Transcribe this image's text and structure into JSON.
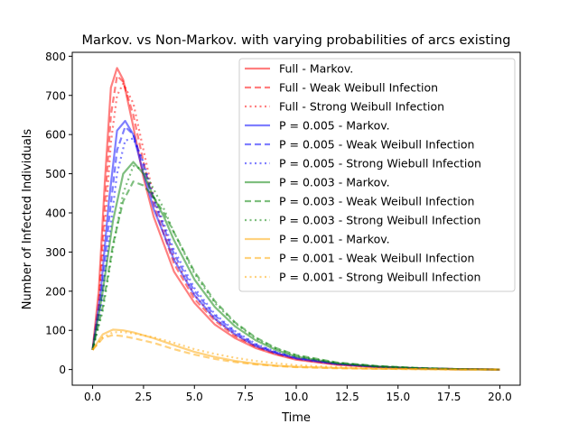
{
  "chart_data": {
    "type": "line",
    "title": "Markov. vs Non-Markov. with varying probabilities of arcs existing",
    "xlabel": "Time",
    "ylabel": "Number of Infected Individuals",
    "xlim": [
      -1.0,
      21.0
    ],
    "ylim": [
      -40,
      810
    ],
    "xticks": [
      0.0,
      2.5,
      5.0,
      7.5,
      10.0,
      12.5,
      15.0,
      17.5,
      20.0
    ],
    "xtick_labels": [
      "0.0",
      "2.5",
      "5.0",
      "7.5",
      "10.0",
      "12.5",
      "15.0",
      "17.5",
      "20.0"
    ],
    "yticks": [
      0,
      100,
      200,
      300,
      400,
      500,
      600,
      700,
      800
    ],
    "ytick_labels": [
      "0",
      "100",
      "200",
      "300",
      "400",
      "500",
      "600",
      "700",
      "800"
    ],
    "grid": false,
    "legend_position": "top-right",
    "series": [
      {
        "name": "Full - Markov.",
        "color": "#ff0000",
        "style": "solid",
        "x": [
          0,
          0.3,
          0.6,
          0.9,
          1.2,
          1.5,
          2,
          2.5,
          3,
          4,
          5,
          6,
          7,
          8,
          9,
          10,
          12,
          14,
          16,
          18,
          20
        ],
        "y": [
          50,
          200,
          480,
          720,
          770,
          740,
          620,
          490,
          390,
          250,
          170,
          115,
          80,
          55,
          38,
          25,
          12,
          6,
          3,
          1,
          0
        ]
      },
      {
        "name": "Full - Weak Weibull Infection",
        "color": "#ff0000",
        "style": "dashed",
        "x": [
          0,
          0.3,
          0.6,
          0.9,
          1.2,
          1.5,
          2,
          2.5,
          3,
          4,
          5,
          6,
          7,
          8,
          9,
          10,
          12,
          14,
          16,
          18,
          20
        ],
        "y": [
          50,
          170,
          420,
          650,
          750,
          735,
          650,
          530,
          420,
          270,
          180,
          125,
          85,
          58,
          40,
          27,
          13,
          6,
          3,
          1,
          0
        ]
      },
      {
        "name": "Full - Strong Weibull Infection",
        "color": "#ff0000",
        "style": "dotted",
        "x": [
          0,
          0.3,
          0.6,
          0.9,
          1.2,
          1.5,
          2,
          2.5,
          3,
          4,
          5,
          6,
          7,
          8,
          9,
          10,
          12,
          14,
          16,
          18,
          20
        ],
        "y": [
          50,
          150,
          360,
          580,
          700,
          730,
          680,
          560,
          440,
          285,
          190,
          130,
          88,
          60,
          42,
          28,
          14,
          7,
          3,
          1,
          0
        ]
      },
      {
        "name": "P = 0.005 - Markov.",
        "color": "#0000ff",
        "style": "solid",
        "x": [
          0,
          0.4,
          0.8,
          1.2,
          1.6,
          2,
          2.5,
          3,
          4,
          5,
          6,
          7,
          8,
          9,
          10,
          12,
          14,
          16,
          18,
          20
        ],
        "y": [
          50,
          200,
          430,
          610,
          635,
          600,
          500,
          410,
          280,
          190,
          130,
          90,
          60,
          42,
          28,
          14,
          7,
          3,
          1,
          0
        ]
      },
      {
        "name": "P = 0.005  - Weak Weibull Infection",
        "color": "#0000ff",
        "style": "dashed",
        "x": [
          0,
          0.4,
          0.8,
          1.2,
          1.6,
          2,
          2.5,
          3,
          4,
          5,
          6,
          7,
          8,
          9,
          10,
          12,
          14,
          16,
          18,
          20
        ],
        "y": [
          50,
          170,
          380,
          560,
          620,
          600,
          520,
          430,
          295,
          200,
          138,
          95,
          64,
          44,
          30,
          15,
          7,
          3,
          1,
          0
        ]
      },
      {
        "name": "P = 0.005  - Strong Wiebull Infection",
        "color": "#0000ff",
        "style": "dotted",
        "x": [
          0,
          0.4,
          0.8,
          1.2,
          1.6,
          2,
          2.5,
          3,
          4,
          5,
          6,
          7,
          8,
          9,
          10,
          12,
          14,
          16,
          18,
          20
        ],
        "y": [
          50,
          150,
          330,
          500,
          585,
          590,
          530,
          440,
          305,
          208,
          142,
          98,
          66,
          45,
          31,
          16,
          8,
          3,
          1,
          0
        ]
      },
      {
        "name": "P = 0.003 - Markov.",
        "color": "#008000",
        "style": "solid",
        "x": [
          0,
          0.5,
          1,
          1.5,
          2,
          2.5,
          3,
          3.5,
          4,
          5,
          6,
          7,
          8,
          9,
          10,
          12,
          14,
          16,
          18,
          20
        ],
        "y": [
          50,
          200,
          380,
          500,
          530,
          500,
          440,
          390,
          330,
          230,
          160,
          110,
          75,
          50,
          33,
          16,
          8,
          3,
          1,
          0
        ]
      },
      {
        "name": "P = 0.003 - Weak Weibull Infection",
        "color": "#008000",
        "style": "dashed",
        "x": [
          0,
          0.5,
          1,
          1.5,
          2,
          2.5,
          3,
          3.5,
          4,
          5,
          6,
          7,
          8,
          9,
          10,
          12,
          14,
          16,
          18,
          20
        ],
        "y": [
          50,
          160,
          320,
          430,
          480,
          470,
          440,
          400,
          350,
          250,
          175,
          120,
          82,
          55,
          37,
          18,
          9,
          4,
          1,
          0
        ]
      },
      {
        "name": "P = 0.003 - Strong Weibull Infection",
        "color": "#008000",
        "style": "dotted",
        "x": [
          0,
          0.5,
          1,
          1.5,
          2,
          2.5,
          3,
          3.5,
          4,
          5,
          6,
          7,
          8,
          9,
          10,
          12,
          14,
          16,
          18,
          20
        ],
        "y": [
          50,
          150,
          310,
          450,
          520,
          510,
          460,
          410,
          350,
          245,
          170,
          118,
          80,
          54,
          36,
          17,
          8,
          4,
          1,
          0
        ]
      },
      {
        "name": "P = 0.001 - Markov.",
        "color": "#ffa500",
        "style": "solid",
        "x": [
          0,
          0.5,
          1,
          1.5,
          2,
          3,
          4,
          5,
          6,
          7,
          8,
          9,
          10,
          12,
          14,
          16,
          18,
          20
        ],
        "y": [
          50,
          90,
          102,
          100,
          95,
          80,
          62,
          45,
          32,
          22,
          15,
          10,
          7,
          4,
          2,
          1,
          0,
          0
        ]
      },
      {
        "name": "P = 0.001 - Weak Weibull Infection",
        "color": "#ffa500",
        "style": "dashed",
        "x": [
          0,
          0.5,
          1,
          1.5,
          2,
          3,
          4,
          5,
          6,
          7,
          8,
          9,
          10,
          12,
          14,
          16,
          18,
          20
        ],
        "y": [
          50,
          80,
          88,
          85,
          80,
          68,
          52,
          38,
          27,
          19,
          13,
          9,
          6,
          3,
          2,
          1,
          0,
          0
        ]
      },
      {
        "name": "P = 0.001 - Strong Weibull Infection",
        "color": "#ffa500",
        "style": "dotted",
        "x": [
          0,
          0.5,
          1,
          1.5,
          2,
          3,
          4,
          5,
          6,
          7,
          8,
          9,
          10,
          12,
          14,
          16,
          18,
          20
        ],
        "y": [
          50,
          82,
          95,
          96,
          92,
          82,
          68,
          52,
          40,
          30,
          22,
          16,
          11,
          6,
          3,
          1,
          0,
          0
        ]
      }
    ]
  }
}
